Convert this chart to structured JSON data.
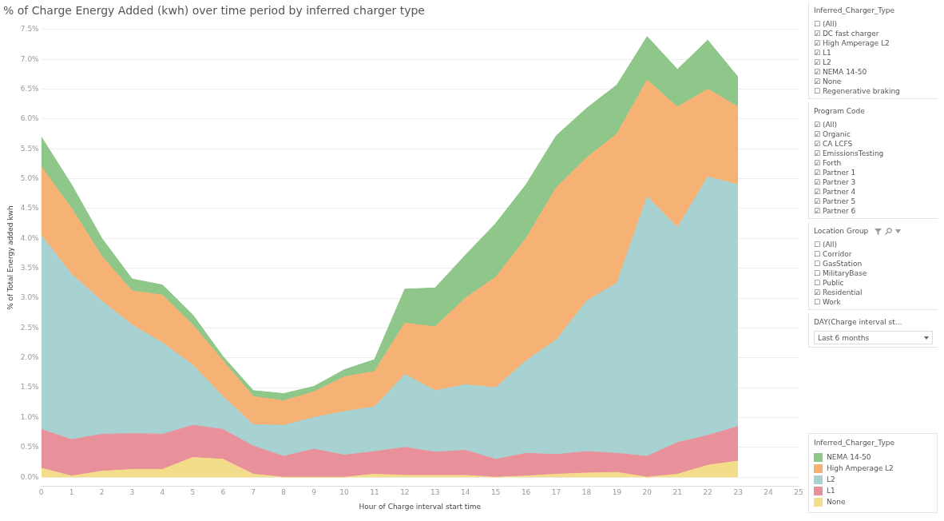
{
  "chart_data": [
    {
      "type": "area",
      "title": "% of Charge Energy Added (kwh) over time period by inferred charger type",
      "xlabel": "Hour of Charge interval start time",
      "ylabel": "% of Total Energy added kwh",
      "legend_title": "Inferred_Charger_Type",
      "legend": "right",
      "stacked": true,
      "grid": "y",
      "x": [
        0,
        1,
        2,
        3,
        4,
        5,
        6,
        7,
        8,
        9,
        10,
        11,
        12,
        13,
        14,
        15,
        16,
        17,
        18,
        19,
        20,
        21,
        22,
        23
      ],
      "xlim": [
        0,
        25
      ],
      "xticks": [
        0,
        1,
        2,
        3,
        4,
        5,
        6,
        7,
        8,
        9,
        10,
        11,
        12,
        13,
        14,
        15,
        16,
        17,
        18,
        19,
        20,
        21,
        22,
        23,
        24,
        25
      ],
      "ylim": [
        -0.15,
        7.5
      ],
      "yticks": [
        {
          "value": 0,
          "label": "0.0%"
        },
        {
          "value": 0.5,
          "label": "0.5%"
        },
        {
          "value": 1,
          "label": "1.0%"
        },
        {
          "value": 1.5,
          "label": "1.5%"
        },
        {
          "value": 2,
          "label": "2.0%"
        },
        {
          "value": 2.5,
          "label": "2.5%"
        },
        {
          "value": 3,
          "label": "3.0%"
        },
        {
          "value": 3.5,
          "label": "3.5%"
        },
        {
          "value": 4,
          "label": "4.0%"
        },
        {
          "value": 4.5,
          "label": "4.5%"
        },
        {
          "value": 5,
          "label": "5.0%"
        },
        {
          "value": 5.5,
          "label": "5.5%"
        },
        {
          "value": 6,
          "label": "6.0%"
        },
        {
          "value": 6.5,
          "label": "6.5%"
        },
        {
          "value": 7,
          "label": "7.0%"
        },
        {
          "value": 7.5,
          "label": "7.5%"
        }
      ],
      "series": [
        {
          "name": "None",
          "color": "#f3dc8a",
          "values": [
            0.15,
            0.02,
            0.1,
            0.13,
            0.13,
            0.33,
            0.3,
            0.05,
            0,
            0,
            0,
            0.05,
            0.03,
            0.03,
            0.03,
            0,
            0.02,
            0.05,
            0.07,
            0.08,
            0,
            0.05,
            0.2,
            0.27
          ]
        },
        {
          "name": "L1",
          "color": "#e8919a",
          "values": [
            0.65,
            0.61,
            0.62,
            0.6,
            0.59,
            0.54,
            0.5,
            0.47,
            0.35,
            0.47,
            0.37,
            0.38,
            0.47,
            0.39,
            0.42,
            0.3,
            0.38,
            0.33,
            0.36,
            0.32,
            0.35,
            0.53,
            0.5,
            0.58
          ]
        },
        {
          "name": "L2",
          "color": "#a8d1d1",
          "values": [
            3.25,
            2.77,
            2.23,
            1.82,
            1.53,
            1.01,
            0.55,
            0.36,
            0.52,
            0.53,
            0.73,
            0.75,
            1.22,
            1.03,
            1.1,
            1.2,
            1.55,
            1.92,
            2.52,
            2.85,
            4.35,
            3.6,
            4.33,
            4.05
          ]
        },
        {
          "name": "High Amperage L2",
          "color": "#f5b274",
          "values": [
            1.15,
            1.1,
            0.75,
            0.57,
            0.8,
            0.67,
            0.6,
            0.47,
            0.41,
            0.43,
            0.58,
            0.59,
            0.86,
            1.07,
            1.45,
            1.85,
            2.05,
            2.55,
            2.4,
            2.5,
            1.95,
            2.02,
            1.47,
            1.3
          ]
        },
        {
          "name": "NEMA 14-50",
          "color": "#8fc78a",
          "values": [
            0.5,
            0.4,
            0.3,
            0.2,
            0.17,
            0.17,
            0.07,
            0.1,
            0.12,
            0.09,
            0.12,
            0.2,
            0.57,
            0.65,
            0.72,
            0.9,
            0.9,
            0.87,
            0.83,
            0.82,
            0.73,
            0.63,
            0.82,
            0.5
          ]
        }
      ]
    },
    {
      "type": "other",
      "title": "Inferred_Charger_Type",
      "annotations": [
        "☐ (All)",
        "☑ DC fast charger",
        "☑ High Amperage L2",
        "☑ L1",
        "☑ L2",
        "☑ NEMA 14-50",
        "☑ None",
        "☐ Regenerative braking"
      ]
    },
    {
      "type": "other",
      "title": "Program Code",
      "annotations": [
        "☑ (All)",
        "☑ Organic",
        "☑ CA LCFS",
        "☑ EmissionsTesting",
        "☑ Forth",
        "☑ Partner 1",
        "☑ Partner 3",
        "☑ Partner 4",
        "☑ Partner 5",
        "☑ Partner 6"
      ]
    },
    {
      "type": "other",
      "title": "Location Group",
      "annotations": [
        "☐ (All)",
        "☐ Corridor",
        "☐ GasStation",
        "☐ MilitaryBase",
        "☐ Public",
        "☑ Residential",
        "☐ Work"
      ]
    },
    {
      "type": "other",
      "title": "DAY(Charge interval st...",
      "annotations": [
        "Last 6 months"
      ]
    }
  ]
}
